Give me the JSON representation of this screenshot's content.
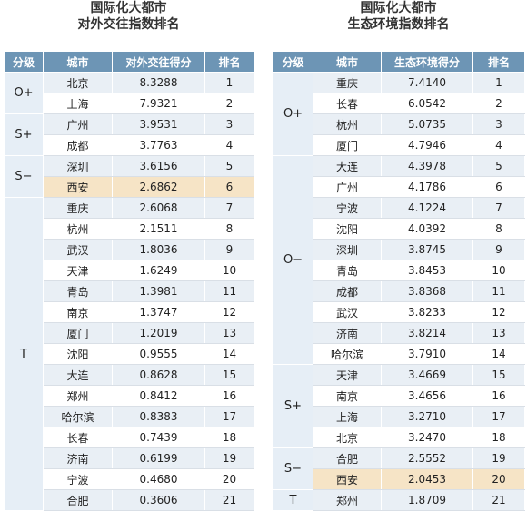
{
  "left": {
    "title_line1": "国际化大都市",
    "title_line2": "对外交往指数排名",
    "headers": [
      "分级",
      "城市",
      "对外交往得分",
      "排名"
    ],
    "grades": [
      {
        "label": "O+",
        "span": 2
      },
      {
        "label": "S+",
        "span": 2
      },
      {
        "label": "S−",
        "span": 2
      },
      {
        "label": "T",
        "span": 15
      }
    ],
    "rows": [
      {
        "city": "北京",
        "score": "8.3288",
        "rank": "1"
      },
      {
        "city": "上海",
        "score": "7.9321",
        "rank": "2"
      },
      {
        "city": "广州",
        "score": "3.9531",
        "rank": "3"
      },
      {
        "city": "成都",
        "score": "3.7763",
        "rank": "4"
      },
      {
        "city": "深圳",
        "score": "3.6156",
        "rank": "5"
      },
      {
        "city": "西安",
        "score": "2.6862",
        "rank": "6"
      },
      {
        "city": "重庆",
        "score": "2.6068",
        "rank": "7"
      },
      {
        "city": "杭州",
        "score": "2.1511",
        "rank": "8"
      },
      {
        "city": "武汉",
        "score": "1.8036",
        "rank": "9"
      },
      {
        "city": "天津",
        "score": "1.6249",
        "rank": "10"
      },
      {
        "city": "青岛",
        "score": "1.3981",
        "rank": "11"
      },
      {
        "city": "南京",
        "score": "1.3747",
        "rank": "12"
      },
      {
        "city": "厦门",
        "score": "1.2019",
        "rank": "13"
      },
      {
        "city": "沈阳",
        "score": "0.9555",
        "rank": "14"
      },
      {
        "city": "大连",
        "score": "0.8628",
        "rank": "15"
      },
      {
        "city": "郑州",
        "score": "0.8412",
        "rank": "16"
      },
      {
        "city": "哈尔滨",
        "score": "0.8383",
        "rank": "17"
      },
      {
        "city": "长春",
        "score": "0.7439",
        "rank": "18"
      },
      {
        "city": "济南",
        "score": "0.6199",
        "rank": "19"
      },
      {
        "city": "宁波",
        "score": "0.4680",
        "rank": "20"
      },
      {
        "city": "合肥",
        "score": "0.3606",
        "rank": "21"
      }
    ],
    "highlight_rank": "6"
  },
  "right": {
    "title_line1": "国际化大都市",
    "title_line2": "生态环境指数排名",
    "headers": [
      "分级",
      "城市",
      "生态环境得分",
      "排名"
    ],
    "grades": [
      {
        "label": "O+",
        "span": 4
      },
      {
        "label": "O−",
        "span": 10
      },
      {
        "label": "S+",
        "span": 4
      },
      {
        "label": "S−",
        "span": 2
      },
      {
        "label": "T",
        "span": 1
      }
    ],
    "rows": [
      {
        "city": "重庆",
        "score": "7.4140",
        "rank": "1"
      },
      {
        "city": "长春",
        "score": "6.0542",
        "rank": "2"
      },
      {
        "city": "杭州",
        "score": "5.0735",
        "rank": "3"
      },
      {
        "city": "厦门",
        "score": "4.7946",
        "rank": "4"
      },
      {
        "city": "大连",
        "score": "4.3978",
        "rank": "5"
      },
      {
        "city": "广州",
        "score": "4.1786",
        "rank": "6"
      },
      {
        "city": "宁波",
        "score": "4.1224",
        "rank": "7"
      },
      {
        "city": "沈阳",
        "score": "4.0392",
        "rank": "8"
      },
      {
        "city": "深圳",
        "score": "3.8745",
        "rank": "9"
      },
      {
        "city": "青岛",
        "score": "3.8453",
        "rank": "10"
      },
      {
        "city": "成都",
        "score": "3.8368",
        "rank": "11"
      },
      {
        "city": "武汉",
        "score": "3.8233",
        "rank": "12"
      },
      {
        "city": "济南",
        "score": "3.8214",
        "rank": "13"
      },
      {
        "city": "哈尔滨",
        "score": "3.7910",
        "rank": "14"
      },
      {
        "city": "天津",
        "score": "3.4669",
        "rank": "15"
      },
      {
        "city": "南京",
        "score": "3.4656",
        "rank": "16"
      },
      {
        "city": "上海",
        "score": "3.2710",
        "rank": "17"
      },
      {
        "city": "北京",
        "score": "3.2470",
        "rank": "18"
      },
      {
        "city": "合肥",
        "score": "2.5552",
        "rank": "19"
      },
      {
        "city": "西安",
        "score": "2.0453",
        "rank": "20"
      },
      {
        "city": "郑州",
        "score": "1.8709",
        "rank": "21"
      }
    ],
    "highlight_rank": "20"
  },
  "colors": {
    "header_bg": "#6d95b5",
    "stripe": "#e9eff5",
    "grade_bg": "#e6eef6",
    "highlight": "#f6e4c6"
  }
}
